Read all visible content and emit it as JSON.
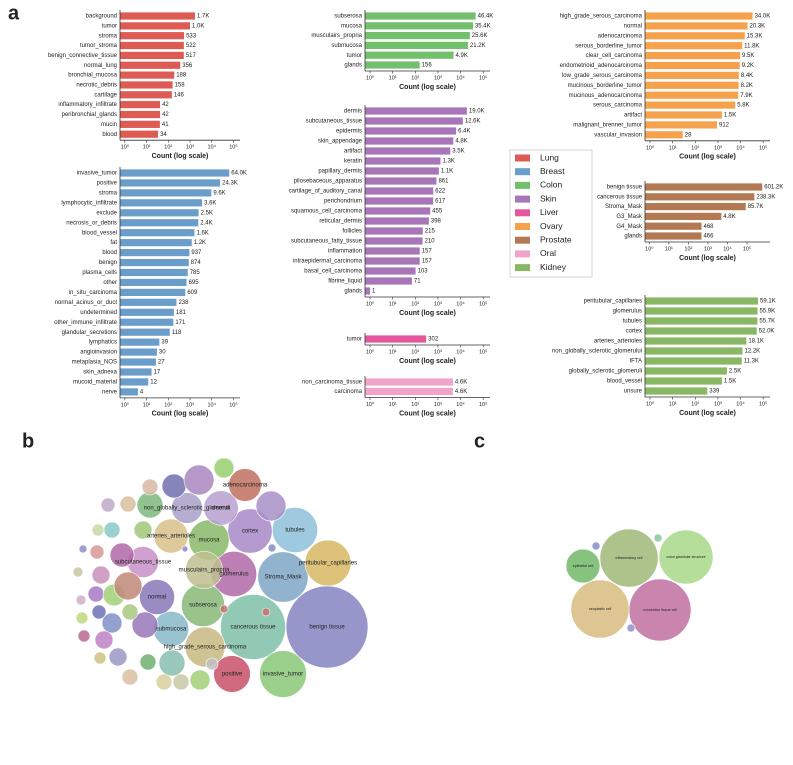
{
  "panel_labels": [
    "a",
    "b",
    "c"
  ],
  "chart_data": [
    {
      "type": "bar",
      "orientation": "horizontal",
      "log_scale_x": true,
      "xlabel": "Count (log scale)",
      "categories": [
        "background",
        "tumor",
        "stroma",
        "tumor_stroma",
        "benign_connective_tissue",
        "normal_lung",
        "bronchial_mucosa",
        "necrotic_debris",
        "cartilage",
        "inflammatory_infiltrate",
        "peribronchial_glands",
        "mucin",
        "blood"
      ],
      "series": [
        {
          "name": "Lung",
          "color": "#dd5b52",
          "values": [
            1700,
            1000,
            533,
            522,
            517,
            356,
            188,
            158,
            146,
            42,
            42,
            41,
            34
          ],
          "value_labels": [
            "1.7K",
            "1.0K",
            "533",
            "522",
            "517",
            "356",
            "188",
            "158",
            "146",
            "42",
            "42",
            "41",
            "34"
          ]
        }
      ],
      "xlim": [
        0.6,
        200000
      ],
      "xticks": [
        {
          "value": 1,
          "label": "10⁰"
        },
        {
          "value": 10,
          "label": "10¹"
        },
        {
          "value": 100,
          "label": "10²"
        },
        {
          "value": 1000,
          "label": "10³"
        },
        {
          "value": 10000,
          "label": "10⁴"
        },
        {
          "value": 100000,
          "label": "10⁵"
        }
      ]
    },
    {
      "type": "bar",
      "orientation": "horizontal",
      "log_scale_x": true,
      "xlabel": "Count (log scale)",
      "categories": [
        "invasive_tumor",
        "positive",
        "stroma",
        "lymphocytic_infiltrate",
        "exclude",
        "necrosis_or_debris",
        "blood_vessel",
        "fat",
        "blood",
        "benign",
        "plasma_cells",
        "other",
        "in_situ_carcinoma",
        "normal_acinus_or_duct",
        "undetermined",
        "other_immune_infiltrate",
        "glandular_secretions",
        "lymphatics",
        "angioinvasion",
        "metaplasia_NOS",
        "skin_adnexa",
        "mucoid_material",
        "nerve"
      ],
      "series": [
        {
          "name": "Breast",
          "color": "#6b9dcb",
          "values": [
            64000,
            24300,
            9600,
            3600,
            2500,
            2400,
            1600,
            1200,
            937,
            874,
            785,
            695,
            609,
            238,
            181,
            171,
            118,
            39,
            30,
            27,
            17,
            12,
            4
          ],
          "value_labels": [
            "64.0K",
            "24.3K",
            "9.6K",
            "3.6K",
            "2.5K",
            "2.4K",
            "1.6K",
            "1.2K",
            "937",
            "874",
            "785",
            "695",
            "609",
            "238",
            "181",
            "171",
            "118",
            "39",
            "30",
            "27",
            "17",
            "12",
            "4"
          ]
        }
      ],
      "xlim": [
        0.6,
        200000
      ],
      "xticks": [
        {
          "value": 1,
          "label": "10⁰"
        },
        {
          "value": 10,
          "label": "10¹"
        },
        {
          "value": 100,
          "label": "10²"
        },
        {
          "value": 1000,
          "label": "10³"
        },
        {
          "value": 10000,
          "label": "10⁴"
        },
        {
          "value": 100000,
          "label": "10⁵"
        }
      ]
    },
    {
      "type": "bar",
      "orientation": "horizontal",
      "log_scale_x": true,
      "xlabel": "Count (log scale)",
      "categories": [
        "subserosa",
        "mucosa",
        "musculairs_propria",
        "submucosa",
        "tumor",
        "glands"
      ],
      "series": [
        {
          "name": "Colon",
          "color": "#72bf6c",
          "values": [
            46400,
            35400,
            25600,
            21200,
            4900,
            156
          ],
          "value_labels": [
            "46.4K",
            "35.4K",
            "25.6K",
            "21.2K",
            "4.9K",
            "156"
          ]
        }
      ],
      "xlim": [
        0.6,
        200000
      ],
      "xticks": [
        {
          "value": 1,
          "label": "10⁰"
        },
        {
          "value": 10,
          "label": "10¹"
        },
        {
          "value": 100,
          "label": "10²"
        },
        {
          "value": 1000,
          "label": "10³"
        },
        {
          "value": 10000,
          "label": "10⁴"
        },
        {
          "value": 100000,
          "label": "10⁵"
        }
      ]
    },
    {
      "type": "bar",
      "orientation": "horizontal",
      "log_scale_x": true,
      "xlabel": "Count (log scale)",
      "categories": [
        "dermis",
        "subcutaneous_tissue",
        "epidermis",
        "skin_appendage",
        "artifact",
        "keratin",
        "papillary_dermis",
        "pilosebaceous_apparatus",
        "cartilage_of_auditory_canal",
        "perichondrium",
        "squamous_cell_carcinoma",
        "reticular_dermis",
        "follicles",
        "subcutaneous_fatty_tissue",
        "inflammation",
        "intraepidermal_carcinoma",
        "basal_cell_carcinoma",
        "fibrine_liquid",
        "glands"
      ],
      "series": [
        {
          "name": "Skin",
          "color": "#a975b9",
          "values": [
            19000,
            12600,
            6400,
            4800,
            3500,
            1300,
            1100,
            861,
            622,
            617,
            455,
            398,
            215,
            210,
            157,
            157,
            103,
            71,
            1
          ],
          "value_labels": [
            "19.0K",
            "12.6K",
            "6.4K",
            "4.8K",
            "3.5K",
            "1.3K",
            "1.1K",
            "861",
            "622",
            "617",
            "455",
            "398",
            "215",
            "210",
            "157",
            "157",
            "103",
            "71",
            "1"
          ]
        }
      ],
      "xlim": [
        0.6,
        200000
      ],
      "xticks": [
        {
          "value": 1,
          "label": "10⁰"
        },
        {
          "value": 10,
          "label": "10¹"
        },
        {
          "value": 100,
          "label": "10²"
        },
        {
          "value": 1000,
          "label": "10³"
        },
        {
          "value": 10000,
          "label": "10⁴"
        },
        {
          "value": 100000,
          "label": "10⁵"
        }
      ]
    },
    {
      "type": "bar",
      "orientation": "horizontal",
      "log_scale_x": true,
      "xlabel": "Count (log scale)",
      "categories": [
        "tumor"
      ],
      "series": [
        {
          "name": "Liver",
          "color": "#e5579b",
          "values": [
            302
          ],
          "value_labels": [
            "302"
          ]
        }
      ],
      "xlim": [
        0.6,
        200000
      ],
      "xticks": [
        {
          "value": 1,
          "label": "10⁰"
        },
        {
          "value": 10,
          "label": "10¹"
        },
        {
          "value": 100,
          "label": "10²"
        },
        {
          "value": 1000,
          "label": "10³"
        },
        {
          "value": 10000,
          "label": "10⁴"
        },
        {
          "value": 100000,
          "label": "10⁵"
        }
      ]
    },
    {
      "type": "bar",
      "orientation": "horizontal",
      "log_scale_x": true,
      "xlabel": "Count (log scale)",
      "categories": [
        "high_grade_serous_carcinoma",
        "normal",
        "adenocarcinoma",
        "serous_borderline_tumor",
        "clear_cell_carcinoma",
        "endometrioid_adenocarcinoma",
        "low_grade_serous_carcinoma",
        "mucinous_borderline_tumor",
        "mucinous_adenocarcinoma",
        "serous_carcinoma",
        "artifact",
        "malignant_brenner_tumor",
        "vascular_invasion"
      ],
      "series": [
        {
          "name": "Ovary",
          "color": "#f6a24c",
          "values": [
            34000,
            20300,
            15300,
            11800,
            9500,
            9200,
            8400,
            8200,
            7900,
            5800,
            1500,
            912,
            28
          ],
          "value_labels": [
            "34.0K",
            "20.3K",
            "15.3K",
            "11.8K",
            "9.5K",
            "9.2K",
            "8.4K",
            "8.2K",
            "7.9K",
            "5.8K",
            "1.5K",
            "912",
            "28"
          ]
        }
      ],
      "xlim": [
        0.6,
        200000
      ],
      "xticks": [
        {
          "value": 1,
          "label": "10⁰"
        },
        {
          "value": 10,
          "label": "10¹"
        },
        {
          "value": 100,
          "label": "10²"
        },
        {
          "value": 1000,
          "label": "10³"
        },
        {
          "value": 10000,
          "label": "10⁴"
        },
        {
          "value": 100000,
          "label": "10⁵"
        }
      ]
    },
    {
      "type": "bar",
      "orientation": "horizontal",
      "log_scale_x": true,
      "xlabel": "Count (log scale)",
      "categories": [
        "benign tissue",
        "cancerous tissue",
        "Stroma_Mask",
        "G3_Mask",
        "G4_Mask",
        "glands"
      ],
      "series": [
        {
          "name": "Prostate",
          "color": "#b37952",
          "values": [
            601200,
            238300,
            85700,
            4800,
            468,
            466
          ],
          "value_labels": [
            "601.2K",
            "238.3K",
            "85.7K",
            "4.8K",
            "468",
            "466"
          ]
        }
      ],
      "xlim": [
        0.6,
        1500000
      ],
      "xticks": [
        {
          "value": 1,
          "label": "10⁰"
        },
        {
          "value": 10,
          "label": "10¹"
        },
        {
          "value": 100,
          "label": "10²"
        },
        {
          "value": 1000,
          "label": "10³"
        },
        {
          "value": 10000,
          "label": "10⁴"
        },
        {
          "value": 100000,
          "label": "10⁵"
        }
      ]
    },
    {
      "type": "bar",
      "orientation": "horizontal",
      "log_scale_x": true,
      "xlabel": "Count (log scale)",
      "categories": [
        "non_carcinoma_tissue",
        "carcinoma"
      ],
      "series": [
        {
          "name": "Oral",
          "color": "#f1a3c9",
          "values": [
            4600,
            4600
          ],
          "value_labels": [
            "4.6K",
            "4.6K"
          ]
        }
      ],
      "xlim": [
        0.6,
        200000
      ],
      "xticks": [
        {
          "value": 1,
          "label": "10⁰"
        },
        {
          "value": 10,
          "label": "10¹"
        },
        {
          "value": 100,
          "label": "10²"
        },
        {
          "value": 1000,
          "label": "10³"
        },
        {
          "value": 10000,
          "label": "10⁴"
        },
        {
          "value": 100000,
          "label": "10⁵"
        }
      ]
    },
    {
      "type": "bar",
      "orientation": "horizontal",
      "log_scale_x": true,
      "xlabel": "Count (log scale)",
      "categories": [
        "peritubular_capillaries",
        "glomerulus",
        "tubules",
        "cortex",
        "arteries_arterioles",
        "non_globally_sclerotic_glomerului",
        "IFTA",
        "globally_sclerotic_glomeruli",
        "blood_vessel",
        "unsure"
      ],
      "series": [
        {
          "name": "Kidney",
          "color": "#88b864",
          "values": [
            59100,
            55900,
            55700,
            52000,
            18100,
            12200,
            11300,
            2500,
            1500,
            339
          ],
          "value_labels": [
            "59.1K",
            "55.9K",
            "55.7K",
            "52.0K",
            "18.1K",
            "12.2K",
            "11.3K",
            "2.5K",
            "1.5K",
            "339"
          ]
        }
      ],
      "xlim": [
        0.6,
        200000
      ],
      "xticks": [
        {
          "value": 1,
          "label": "10⁰"
        },
        {
          "value": 10,
          "label": "10¹"
        },
        {
          "value": 100,
          "label": "10²"
        },
        {
          "value": 1000,
          "label": "10³"
        },
        {
          "value": 10000,
          "label": "10⁴"
        },
        {
          "value": 100000,
          "label": "10⁵"
        }
      ]
    },
    {
      "type": "packed_bubble",
      "categories": [
        "benign tissue",
        "cancerous tissue",
        "Stroma_Mask",
        "invasive_tumor",
        "peritubular_capillaries",
        "glomerulus",
        "tubules",
        "subserosa",
        "cortex",
        "mucosa",
        "high_grade_serous_carcinoma",
        "musculairs_propria",
        "positive",
        "submucosa",
        "normal",
        "dermis",
        "arteries_arterioles",
        "adenocarcinoma",
        "subcutaneous_tissue",
        "non_globally_sclerotic_glomeruli",
        null,
        null,
        null,
        null,
        null,
        null,
        null,
        null,
        null,
        null,
        null,
        null,
        null,
        null,
        null,
        null,
        null,
        null,
        null,
        null,
        null,
        null,
        null,
        null,
        null,
        null,
        null,
        null,
        null,
        null,
        null,
        null,
        null,
        null,
        null,
        null,
        null,
        null,
        null,
        null
      ],
      "values": [
        601200,
        238300,
        85700,
        64000,
        59100,
        55900,
        55700,
        46400,
        52000,
        35400,
        34000,
        25600,
        24300,
        21200,
        20300,
        19000,
        18100,
        15300,
        12600,
        12200,
        870,
        511,
        870,
        276,
        511,
        54,
        133,
        1396,
        870,
        133,
        511,
        2130,
        276,
        1396,
        276,
        1396,
        870,
        276,
        870,
        2130,
        6080,
        870,
        870,
        3100,
        276,
        8170,
        4410,
        1396,
        6080,
        4410,
        10770,
        870,
        2130,
        10770,
        54,
        17,
        54,
        54,
        6080,
        870
      ],
      "colors": [
        "#8484c2",
        "#7fbfa8",
        "#7ea6c6",
        "#88c878",
        "#d6b862",
        "#b06aa8",
        "#8ec0d8",
        "#88b878",
        "#a888c8",
        "#88b868",
        "#c8b880",
        "#c0c090",
        "#c85068",
        "#88b8c8",
        "#8878b8",
        "#b8a0d0",
        "#d8c088",
        "#c07060",
        "#c890c8",
        "#a8a0c8",
        "#d8c0a0",
        "#c0a8c8",
        "#88c8c8",
        "#c8d8a8",
        "#d89898",
        "#9090c0",
        "#c8c8a0",
        "#c890b8",
        "#a878c8",
        "#d0b0c8",
        "#7070b8",
        "#8090c8",
        "#c0d880",
        "#c080c8",
        "#b86890",
        "#9898c8",
        "#d8c0a0",
        "#d0c080",
        "#70b070",
        "#a0d078",
        "#88c0b0",
        "#d8d0a0",
        "#c8c8a8",
        "#a0d078",
        "#c0c0c0",
        "#c08878",
        "#b068a8",
        "#a0c878",
        "#7cb87c",
        "#7070b0",
        "#a888c0",
        "#d8b8a8",
        "#98d070",
        "#a890c8",
        "#c87070",
        "#8888c8",
        "#8888c8",
        "#c87070",
        "#9878b8",
        "#a8c880"
      ]
    },
    {
      "type": "packed_bubble",
      "categories": [
        "connective tissue cell",
        "inflammatory cell",
        "neoplastic cell",
        "colon glandular structure",
        "epithelial cell",
        null,
        null,
        null
      ],
      "values": [
        100,
        88,
        88,
        76,
        30,
        1.7,
        1.7,
        1.7
      ],
      "colors": [
        "#c070a0",
        "#a0b878",
        "#d8bc80",
        "#a8d888",
        "#70b868",
        "#8090c8",
        "#88c8a0",
        "#9090c8"
      ]
    }
  ]
}
